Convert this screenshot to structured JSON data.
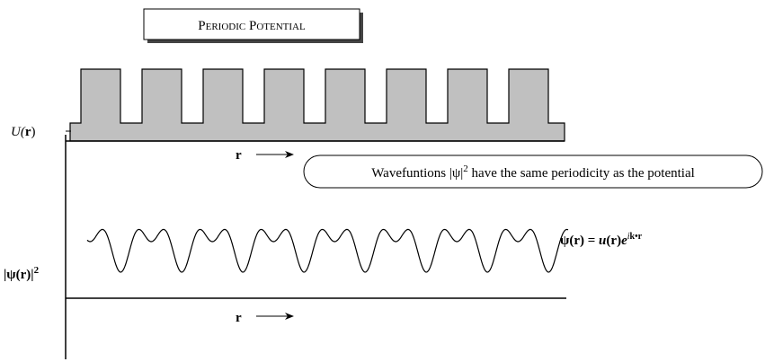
{
  "title": "Periodic Potential",
  "potential": {
    "label": [
      "U(",
      "r",
      ")"
    ],
    "axis": "r"
  },
  "callout": [
    "Wavefuntions |ψ|",
    "2",
    " have the same periodicity as the potential"
  ],
  "wavefunction": {
    "label": [
      "|ψ(r)|",
      "2"
    ],
    "axis": "r",
    "equation": [
      "ψ(",
      "r",
      ") = ",
      "u",
      "(",
      "r",
      ")",
      "e",
      "i",
      "k•r"
    ]
  }
}
